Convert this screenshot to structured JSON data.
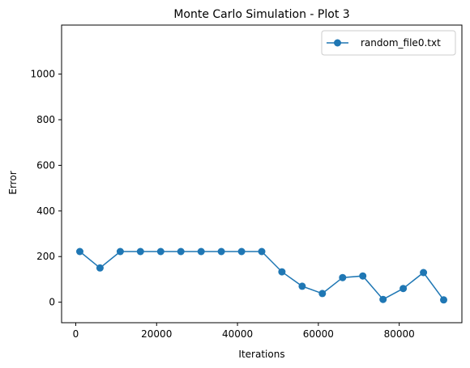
{
  "chart_data": {
    "type": "line",
    "title": "Monte Carlo Simulation - Plot 3",
    "xlabel": "Iterations",
    "ylabel": "Error",
    "xlim": [
      -3500,
      95500
    ],
    "ylim": [
      -90,
      1215
    ],
    "x_ticks": [
      0,
      20000,
      40000,
      60000,
      80000
    ],
    "x_tick_labels": [
      "0",
      "20000",
      "40000",
      "60000",
      "80000"
    ],
    "y_ticks": [
      0,
      200,
      400,
      600,
      800,
      1000
    ],
    "y_tick_labels": [
      "0",
      "200",
      "400",
      "600",
      "800",
      "1000"
    ],
    "grid": false,
    "legend_position": "top-right",
    "series": [
      {
        "name": "random_file0.txt",
        "color": "#1f77b4",
        "marker": "circle",
        "x": [
          1000,
          6000,
          11000,
          16000,
          21000,
          26000,
          31000,
          36000,
          41000,
          46000,
          51000,
          56000,
          61000,
          66000,
          71000,
          76000,
          81000,
          86000,
          91000
        ],
        "y": [
          222,
          150,
          222,
          222,
          222,
          222,
          222,
          222,
          222,
          222,
          133,
          70,
          38,
          108,
          115,
          12,
          60,
          130,
          10
        ]
      }
    ]
  }
}
